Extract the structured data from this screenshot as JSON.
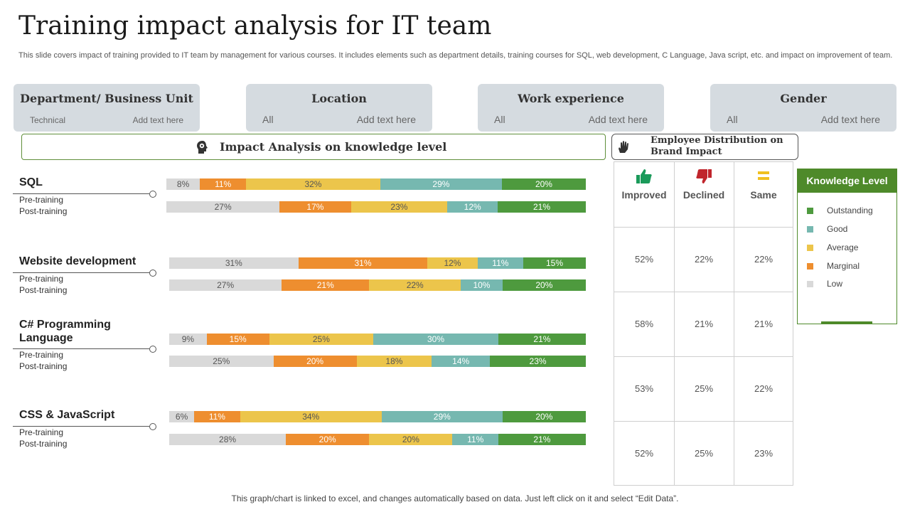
{
  "title": "Training impact analysis for IT team",
  "subtitle": "This slide covers impact of training provided to IT team by management for various courses. It includes elements such as department details, training courses for SQL, web development, C Language, Java script, etc. and impact on improvement of team.",
  "filters": [
    {
      "title": "Department/ Business Unit",
      "left": "Technical",
      "right": "Add text here"
    },
    {
      "title": "Location",
      "left": "All",
      "right": "Add text here"
    },
    {
      "title": "Work experience",
      "left": "All",
      "right": "Add text here"
    },
    {
      "title": "Gender",
      "left": "All",
      "right": "Add text here"
    }
  ],
  "impact_title": "Impact Analysis on knowledge level",
  "distribution_title": "Employee Distribution on Brand Impact",
  "colors": {
    "low": "#d9d9d9",
    "marginal": "#ee8e2f",
    "average": "#ecc54b",
    "good": "#76b8b0",
    "outstanding": "#4e9a3e",
    "improved": "#1a9a5a",
    "declined": "#c0252c",
    "same": "#f0c020",
    "legend_green": "#4e8a2a"
  },
  "chart_data": {
    "type": "bar",
    "stacked": true,
    "orientation": "horizontal",
    "title": "Impact Analysis on knowledge level",
    "unit": "%",
    "series_order": [
      "Low",
      "Marginal",
      "Average",
      "Good",
      "Outstanding"
    ],
    "courses": [
      {
        "name": "SQL",
        "rows": [
          {
            "label": "Pre-training",
            "values": [
              8,
              11,
              32,
              29,
              20
            ]
          },
          {
            "label": "Post-training",
            "values": [
              27,
              17,
              23,
              12,
              21
            ]
          }
        ]
      },
      {
        "name": "Website development",
        "rows": [
          {
            "label": "Pre-training",
            "values": [
              31,
              31,
              12,
              11,
              15
            ]
          },
          {
            "label": "Post-training",
            "values": [
              27,
              21,
              22,
              10,
              20
            ]
          }
        ]
      },
      {
        "name": "C# Programming Language",
        "rows": [
          {
            "label": "Pre-training",
            "values": [
              9,
              15,
              25,
              30,
              21
            ]
          },
          {
            "label": "Post-training",
            "values": [
              25,
              20,
              18,
              14,
              23
            ]
          }
        ]
      },
      {
        "name": "CSS & JavaScript",
        "rows": [
          {
            "label": "Pre-training",
            "values": [
              6,
              11,
              34,
              29,
              20
            ]
          },
          {
            "label": "Post-training",
            "values": [
              28,
              20,
              20,
              11,
              21
            ]
          }
        ]
      }
    ]
  },
  "legend": {
    "title": "Knowledge Level",
    "items": [
      {
        "label": "Outstanding",
        "key": "outstanding"
      },
      {
        "label": "Good",
        "key": "good"
      },
      {
        "label": "Average",
        "key": "average"
      },
      {
        "label": "Marginal",
        "key": "marginal"
      },
      {
        "label": "Low",
        "key": "low"
      }
    ]
  },
  "distribution": {
    "headers": [
      {
        "label": "Improved",
        "icon": "thumbs-up-icon"
      },
      {
        "label": "Declined",
        "icon": "thumbs-down-icon"
      },
      {
        "label": "Same",
        "icon": "equals-icon"
      }
    ],
    "rows": [
      [
        "52%",
        "22%",
        "22%"
      ],
      [
        "58%",
        "21%",
        "21%"
      ],
      [
        "53%",
        "25%",
        "22%"
      ],
      [
        "52%",
        "25%",
        "23%"
      ]
    ]
  },
  "footer": "This graph/chart is linked to excel, and changes automatically based on data. Just left click on it and select “Edit Data”."
}
